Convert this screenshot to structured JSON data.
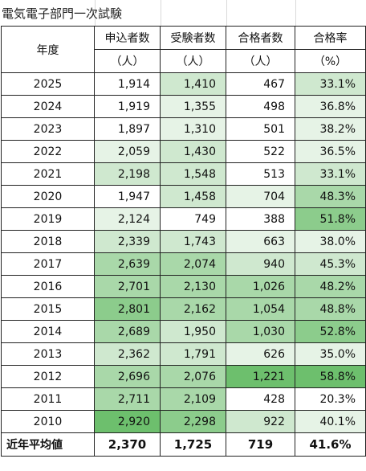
{
  "sheet": {
    "title": "電気電子部門一次試験",
    "colors": {
      "white": "#ffffff",
      "lightest": "#e6f3e6",
      "light": "#cfe8cf",
      "mid": "#a9d8a9",
      "strong": "#8ccc8c",
      "deep": "#6dbf6d"
    }
  },
  "table": {
    "header": {
      "year": "年度",
      "applicants": [
        "申込者数",
        "（人）"
      ],
      "examinees": [
        "受験者数",
        "（人）"
      ],
      "passers": [
        "合格者数",
        "（人）"
      ],
      "rate": [
        "合格率",
        "（%）"
      ]
    },
    "rows": [
      {
        "year": "2025",
        "applicants": "1,914",
        "examinees": "1,410",
        "passers": "467",
        "rate": "33.1%",
        "c": [
          "white",
          "light",
          "white",
          "light"
        ]
      },
      {
        "year": "2024",
        "applicants": "1,919",
        "examinees": "1,355",
        "passers": "498",
        "rate": "36.8%",
        "c": [
          "white",
          "lightest",
          "white",
          "lightest"
        ]
      },
      {
        "year": "2023",
        "applicants": "1,897",
        "examinees": "1,310",
        "passers": "501",
        "rate": "38.2%",
        "c": [
          "white",
          "lightest",
          "white",
          "lightest"
        ]
      },
      {
        "year": "2022",
        "applicants": "2,059",
        "examinees": "1,430",
        "passers": "522",
        "rate": "36.5%",
        "c": [
          "lightest",
          "light",
          "white",
          "lightest"
        ]
      },
      {
        "year": "2021",
        "applicants": "2,198",
        "examinees": "1,548",
        "passers": "513",
        "rate": "33.1%",
        "c": [
          "light",
          "light",
          "white",
          "light"
        ]
      },
      {
        "year": "2020",
        "applicants": "1,947",
        "examinees": "1,458",
        "passers": "704",
        "rate": "48.3%",
        "c": [
          "white",
          "light",
          "lightest",
          "mid"
        ]
      },
      {
        "year": "2019",
        "applicants": "2,124",
        "examinees": "749",
        "passers": "388",
        "rate": "51.8%",
        "c": [
          "lightest",
          "white",
          "white",
          "strong"
        ]
      },
      {
        "year": "2018",
        "applicants": "2,339",
        "examinees": "1,743",
        "passers": "663",
        "rate": "38.0%",
        "c": [
          "light",
          "light",
          "lightest",
          "lightest"
        ]
      },
      {
        "year": "2017",
        "applicants": "2,639",
        "examinees": "2,074",
        "passers": "940",
        "rate": "45.3%",
        "c": [
          "mid",
          "mid",
          "light",
          "light"
        ]
      },
      {
        "year": "2016",
        "applicants": "2,701",
        "examinees": "2,130",
        "passers": "1,026",
        "rate": "48.2%",
        "c": [
          "mid",
          "mid",
          "mid",
          "mid"
        ]
      },
      {
        "year": "2015",
        "applicants": "2,801",
        "examinees": "2,162",
        "passers": "1,054",
        "rate": "48.8%",
        "c": [
          "strong",
          "mid",
          "mid",
          "mid"
        ]
      },
      {
        "year": "2014",
        "applicants": "2,689",
        "examinees": "1,950",
        "passers": "1,030",
        "rate": "52.8%",
        "c": [
          "mid",
          "light",
          "mid",
          "strong"
        ]
      },
      {
        "year": "2013",
        "applicants": "2,362",
        "examinees": "1,791",
        "passers": "626",
        "rate": "35.0%",
        "c": [
          "light",
          "light",
          "lightest",
          "lightest"
        ]
      },
      {
        "year": "2012",
        "applicants": "2,696",
        "examinees": "2,076",
        "passers": "1,221",
        "rate": "58.8%",
        "c": [
          "mid",
          "mid",
          "deep",
          "deep"
        ]
      },
      {
        "year": "2011",
        "applicants": "2,711",
        "examinees": "2,109",
        "passers": "428",
        "rate": "20.3%",
        "c": [
          "mid",
          "mid",
          "white",
          "white"
        ]
      },
      {
        "year": "2010",
        "applicants": "2,920",
        "examinees": "2,298",
        "passers": "922",
        "rate": "40.1%",
        "c": [
          "deep",
          "strong",
          "light",
          "lightest"
        ]
      }
    ],
    "average": {
      "label": "近年平均値",
      "applicants": "2,370",
      "examinees": "1,725",
      "passers": "719",
      "rate": "41.6%"
    }
  }
}
